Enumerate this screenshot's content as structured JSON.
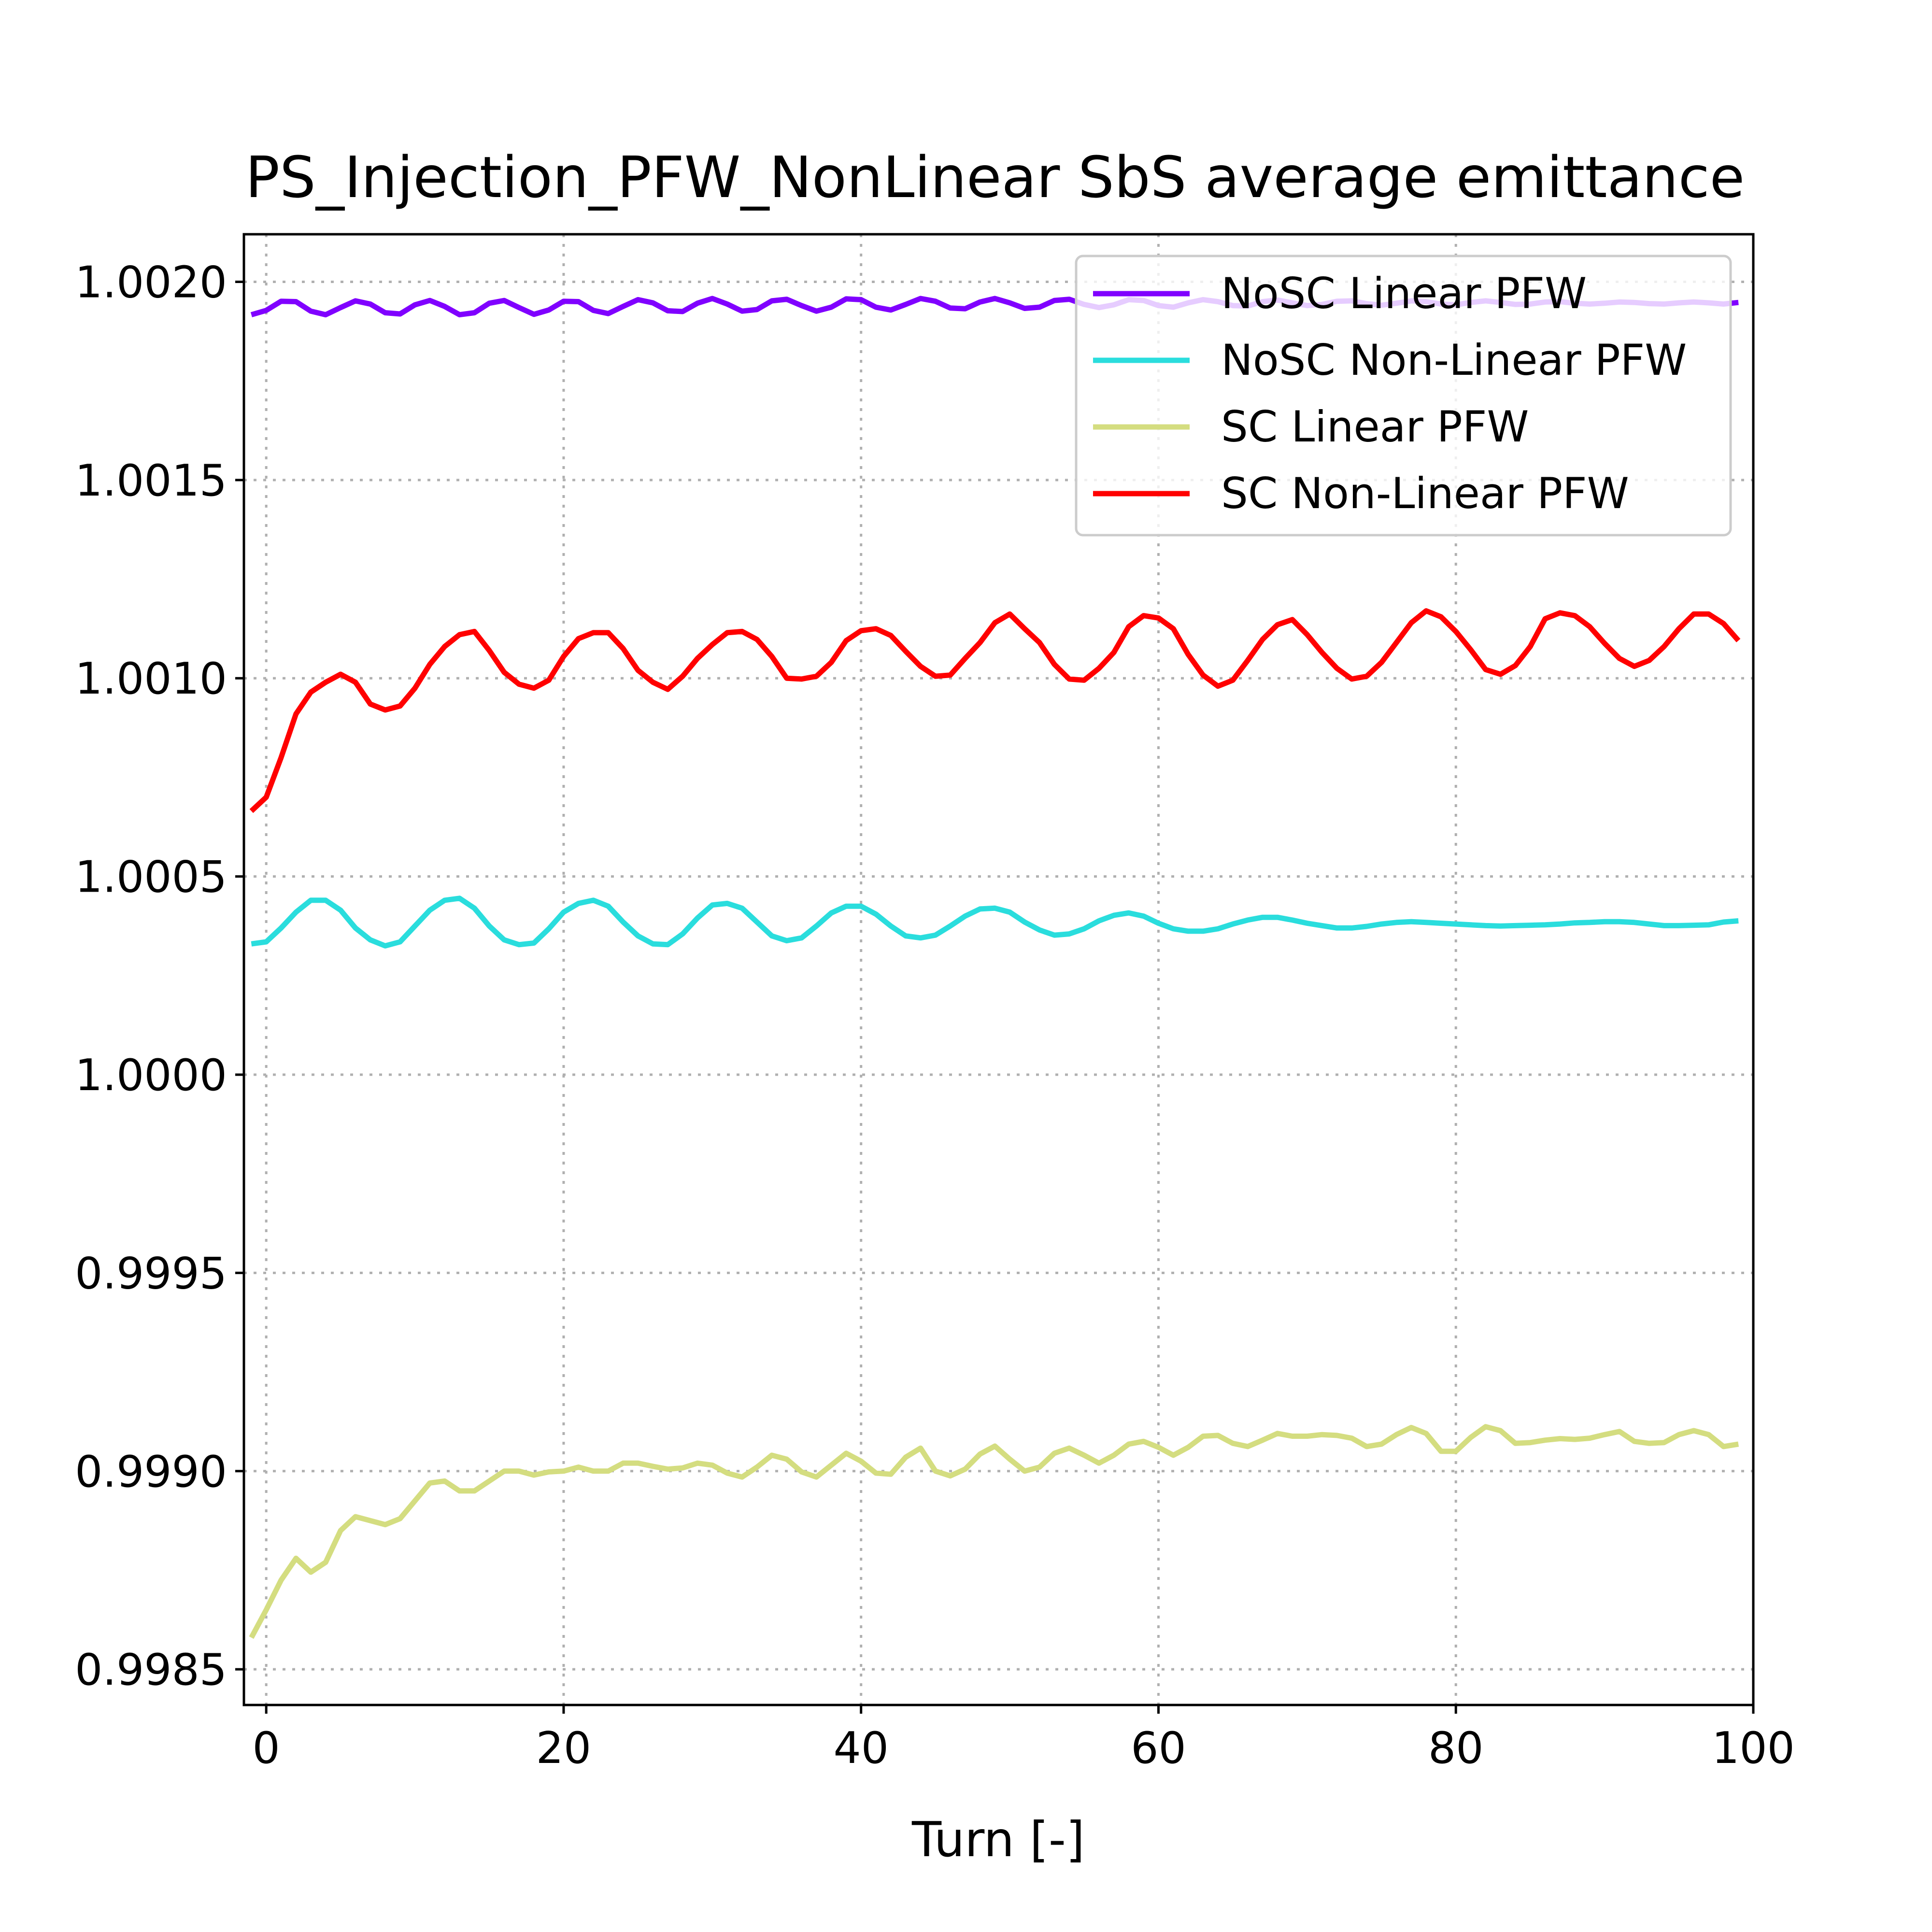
{
  "chart_data": {
    "type": "line",
    "title": "PS_Injection_PFW_NonLinear SbS average emittance",
    "xlabel": "Turn [-]",
    "ylabel": "",
    "xlim": [
      -1.5,
      100
    ],
    "ylim": [
      0.99841,
      1.00212
    ],
    "xticks": [
      0,
      20,
      40,
      60,
      80,
      100
    ],
    "xtick_labels": [
      "0",
      "20",
      "40",
      "60",
      "80",
      "100"
    ],
    "yticks": [
      0.9985,
      0.999,
      0.9995,
      1.0,
      1.0005,
      1.001,
      1.0015,
      1.002
    ],
    "ytick_labels": [
      "0.9985",
      "0.9990",
      "0.9995",
      "1.0000",
      "1.0005",
      "1.0010",
      "1.0015",
      "1.0020"
    ],
    "grid": true,
    "legend_position": "top-right",
    "x": [
      -1,
      0,
      1,
      2,
      3,
      4,
      5,
      6,
      7,
      8,
      9,
      10,
      11,
      12,
      13,
      14,
      15,
      16,
      17,
      18,
      19,
      20,
      21,
      22,
      23,
      24,
      25,
      26,
      27,
      28,
      29,
      30,
      31,
      32,
      33,
      34,
      35,
      36,
      37,
      38,
      39,
      40,
      41,
      42,
      43,
      44,
      45,
      46,
      47,
      48,
      49,
      50,
      51,
      52,
      53,
      54,
      55,
      56,
      57,
      58,
      59,
      60,
      61,
      62,
      63,
      64,
      65,
      66,
      67,
      68,
      69,
      70,
      71,
      72,
      73,
      74,
      75,
      76,
      77,
      78,
      79,
      80,
      81,
      82,
      83,
      84,
      85,
      86,
      87,
      88,
      89,
      90,
      91,
      92,
      93,
      94,
      95,
      96,
      97,
      98,
      99
    ],
    "series": [
      {
        "name": "NoSC Linear PFW",
        "color": "#8000ff",
        "values": [
          1.001917,
          1.001928,
          1.001951,
          1.00195,
          1.001926,
          1.001917,
          1.001935,
          1.001952,
          1.001944,
          1.001922,
          1.001919,
          1.001942,
          1.001953,
          1.001938,
          1.001917,
          1.001922,
          1.001946,
          1.001953,
          1.001935,
          1.001918,
          1.001929,
          1.001951,
          1.00195,
          1.001928,
          1.00192,
          1.001938,
          1.001955,
          1.001947,
          1.001927,
          1.001925,
          1.001946,
          1.001958,
          1.001944,
          1.001926,
          1.00193,
          1.001952,
          1.001956,
          1.00194,
          1.001926,
          1.001936,
          1.001957,
          1.001955,
          1.001936,
          1.001929,
          1.001943,
          1.001958,
          1.001951,
          1.001934,
          1.001932,
          1.001949,
          1.001958,
          1.001947,
          1.001933,
          1.001936,
          1.001953,
          1.001956,
          1.001943,
          1.001935,
          1.001942,
          1.001955,
          1.001953,
          1.00194,
          1.001936,
          1.001947,
          1.001955,
          1.00195,
          1.00194,
          1.001939,
          1.00195,
          1.001954,
          1.001947,
          1.00194,
          1.001943,
          1.001951,
          1.001952,
          1.001945,
          1.001941,
          1.001946,
          1.001952,
          1.00195,
          1.001944,
          1.001942,
          1.001948,
          1.001952,
          1.001948,
          1.001943,
          1.001944,
          1.001949,
          1.00195,
          1.001946,
          1.001944,
          1.001946,
          1.001949,
          1.001948,
          1.001945,
          1.001944,
          1.001947,
          1.001949,
          1.001947,
          1.001944,
          1.001948
        ]
      },
      {
        "name": "NoSC Non-Linear PFW",
        "color": "#2adddd",
        "values": [
          1.00033,
          1.000335,
          1.00037,
          1.00041,
          1.00044,
          1.00044,
          1.000415,
          1.00037,
          1.00034,
          1.000325,
          1.000335,
          1.000375,
          1.000415,
          1.00044,
          1.000445,
          1.00042,
          1.000375,
          1.00034,
          1.000328,
          1.000332,
          1.000368,
          1.00041,
          1.000432,
          1.00044,
          1.000425,
          1.000385,
          1.00035,
          1.00033,
          1.000328,
          1.000355,
          1.000395,
          1.000428,
          1.000432,
          1.00042,
          1.000385,
          1.00035,
          1.000338,
          1.000345,
          1.000375,
          1.000408,
          1.000425,
          1.000425,
          1.000405,
          1.000375,
          1.00035,
          1.000345,
          1.000352,
          1.000375,
          1.0004,
          1.000418,
          1.00042,
          1.00041,
          1.000385,
          1.000365,
          1.000352,
          1.000355,
          1.000368,
          1.000388,
          1.000402,
          1.000408,
          1.0004,
          1.000382,
          1.000368,
          1.000362,
          1.000362,
          1.000368,
          1.00038,
          1.00039,
          1.000397,
          1.000397,
          1.00039,
          1.000382,
          1.000376,
          1.00037,
          1.00037,
          1.000374,
          1.00038,
          1.000384,
          1.000386,
          1.000384,
          1.000382,
          1.00038,
          1.000378,
          1.000376,
          1.000375,
          1.000376,
          1.000377,
          1.000378,
          1.00038,
          1.000383,
          1.000384,
          1.000386,
          1.000386,
          1.000384,
          1.00038,
          1.000376,
          1.000376,
          1.000377,
          1.000378,
          1.000385,
          1.000388
        ]
      },
      {
        "name": "SC Linear PFW",
        "color": "#d4dd80",
        "values": [
          0.99858,
          0.99865,
          0.998725,
          0.99878,
          0.998745,
          0.99877,
          0.99885,
          0.998885,
          0.998875,
          0.998865,
          0.99888,
          0.998925,
          0.99897,
          0.998975,
          0.99895,
          0.99895,
          0.998975,
          0.999,
          0.999,
          0.99899,
          0.998998,
          0.999,
          0.99901,
          0.999,
          0.999,
          0.99902,
          0.99902,
          0.999012,
          0.999005,
          0.999008,
          0.99902,
          0.999015,
          0.998995,
          0.998985,
          0.99901,
          0.99904,
          0.99903,
          0.998998,
          0.998985,
          0.999015,
          0.999045,
          0.999025,
          0.998995,
          0.998992,
          0.999035,
          0.999058,
          0.999,
          0.998988,
          0.999005,
          0.999043,
          0.999063,
          0.99903,
          0.999,
          0.99901,
          0.999045,
          0.999058,
          0.99904,
          0.99902,
          0.99904,
          0.999068,
          0.999075,
          0.99906,
          0.99904,
          0.99906,
          0.999088,
          0.99909,
          0.99907,
          0.999062,
          0.999078,
          0.999095,
          0.999088,
          0.999088,
          0.999092,
          0.99909,
          0.999083,
          0.999062,
          0.999068,
          0.999092,
          0.99911,
          0.999095,
          0.99905,
          0.99905,
          0.999085,
          0.999112,
          0.999102,
          0.99907,
          0.999072,
          0.999078,
          0.999082,
          0.99908,
          0.999083,
          0.999092,
          0.9991,
          0.999075,
          0.99907,
          0.999072,
          0.999092,
          0.999102,
          0.999092,
          0.999062,
          0.999068
        ]
      },
      {
        "name": "SC Non-Linear PFW",
        "color": "#ff0000",
        "values": [
          1.000665,
          1.0007,
          1.0008,
          1.00091,
          1.000965,
          1.00099,
          1.00101,
          1.00099,
          1.000935,
          1.00092,
          1.00093,
          1.000975,
          1.001035,
          1.00108,
          1.00111,
          1.001118,
          1.00107,
          1.001015,
          1.000985,
          1.000975,
          1.000995,
          1.001055,
          1.0011,
          1.001115,
          1.001115,
          1.001075,
          1.00102,
          1.00099,
          1.000972,
          1.001005,
          1.00105,
          1.001085,
          1.001115,
          1.001118,
          1.001098,
          1.001055,
          1.001,
          1.000998,
          1.001005,
          1.00104,
          1.001095,
          1.00112,
          1.001125,
          1.001108,
          1.001068,
          1.00103,
          1.001005,
          1.001008,
          1.00105,
          1.00109,
          1.00114,
          1.001162,
          1.001125,
          1.00109,
          1.001035,
          1.000998,
          1.000995,
          1.001025,
          1.001065,
          1.00113,
          1.001158,
          1.001152,
          1.001125,
          1.00106,
          1.001008,
          1.00098,
          1.000995,
          1.001045,
          1.001098,
          1.001135,
          1.001148,
          1.00111,
          1.001065,
          1.001025,
          1.000998,
          1.001005,
          1.00104,
          1.00109,
          1.00114,
          1.00117,
          1.001155,
          1.001118,
          1.001072,
          1.001022,
          1.00101,
          1.001032,
          1.00108,
          1.00115,
          1.001165,
          1.001158,
          1.00113,
          1.001088,
          1.00105,
          1.00103,
          1.001045,
          1.00108,
          1.001125,
          1.001162,
          1.001162,
          1.001138,
          1.001095
        ]
      }
    ]
  }
}
